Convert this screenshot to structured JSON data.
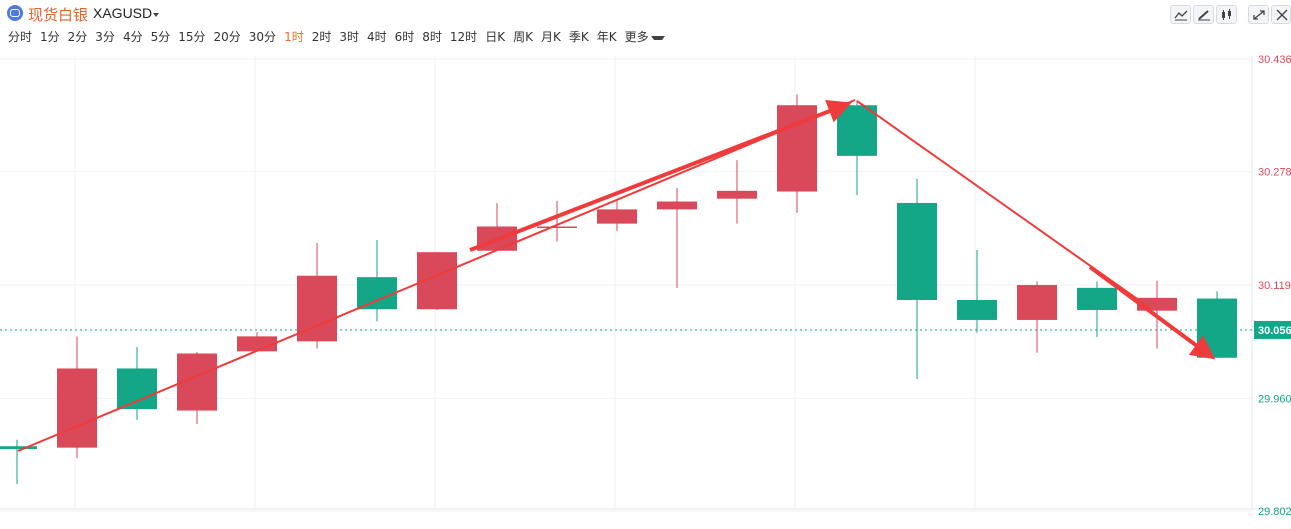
{
  "header": {
    "symbol_name": "现货白银",
    "symbol_code": "XAGUSD"
  },
  "toolbar": {
    "icons": [
      "indicator-icon",
      "draw-icon",
      "candle-style-icon",
      "expand-icon",
      "close-icon"
    ]
  },
  "periods": {
    "items": [
      "分时",
      "1分",
      "2分",
      "3分",
      "4分",
      "5分",
      "15分",
      "20分",
      "30分",
      "1时",
      "2时",
      "3时",
      "4时",
      "6时",
      "8时",
      "12时",
      "日K",
      "周K",
      "月K",
      "季K",
      "年K"
    ],
    "more_label": "更多",
    "active": "1时"
  },
  "colors": {
    "up": "#d9495a",
    "down": "#13a687",
    "arrow": "#ef3b3b",
    "accent": "#f0711e"
  },
  "chart_data": {
    "type": "candlestick",
    "ylim": [
      29.805,
      30.44
    ],
    "y_ticks": [
      "30.436",
      "30.278",
      "30.119",
      "29.960",
      "29.802"
    ],
    "tick_colors": [
      "up",
      "up",
      "up",
      "down",
      "down"
    ],
    "current_price": "30.056",
    "candles": [
      {
        "o": 29.893,
        "c": 29.889,
        "h": 29.902,
        "l": 29.84
      },
      {
        "o": 29.891,
        "c": 30.002,
        "h": 30.047,
        "l": 29.876
      },
      {
        "o": 30.002,
        "c": 29.945,
        "h": 30.032,
        "l": 29.93
      },
      {
        "o": 29.943,
        "c": 30.023,
        "h": 30.025,
        "l": 29.924
      },
      {
        "o": 30.026,
        "c": 30.047,
        "h": 30.053,
        "l": 30.026
      },
      {
        "o": 30.04,
        "c": 30.132,
        "h": 30.178,
        "l": 30.03
      },
      {
        "o": 30.13,
        "c": 30.085,
        "h": 30.182,
        "l": 30.068
      },
      {
        "o": 30.085,
        "c": 30.165,
        "h": 30.165,
        "l": 30.084
      },
      {
        "o": 30.167,
        "c": 30.201,
        "h": 30.234,
        "l": 30.167
      },
      {
        "o": 30.201,
        "c": 30.201,
        "h": 30.237,
        "l": 30.18
      },
      {
        "o": 30.205,
        "c": 30.225,
        "h": 30.237,
        "l": 30.195
      },
      {
        "o": 30.225,
        "c": 30.236,
        "h": 30.255,
        "l": 30.115
      },
      {
        "o": 30.24,
        "c": 30.251,
        "h": 30.294,
        "l": 30.205
      },
      {
        "o": 30.25,
        "c": 30.371,
        "h": 30.386,
        "l": 30.22
      },
      {
        "o": 30.371,
        "c": 30.3,
        "h": 30.378,
        "l": 30.245
      },
      {
        "o": 30.234,
        "c": 30.098,
        "h": 30.268,
        "l": 29.987
      },
      {
        "o": 30.098,
        "c": 30.07,
        "h": 30.168,
        "l": 30.052
      },
      {
        "o": 30.07,
        "c": 30.119,
        "h": 30.124,
        "l": 30.024
      },
      {
        "o": 30.115,
        "c": 30.084,
        "h": 30.124,
        "l": 30.046
      },
      {
        "o": 30.083,
        "c": 30.101,
        "h": 30.125,
        "l": 30.03
      },
      {
        "o": 30.1,
        "c": 30.017,
        "h": 30.11,
        "l": 30.017
      }
    ]
  }
}
